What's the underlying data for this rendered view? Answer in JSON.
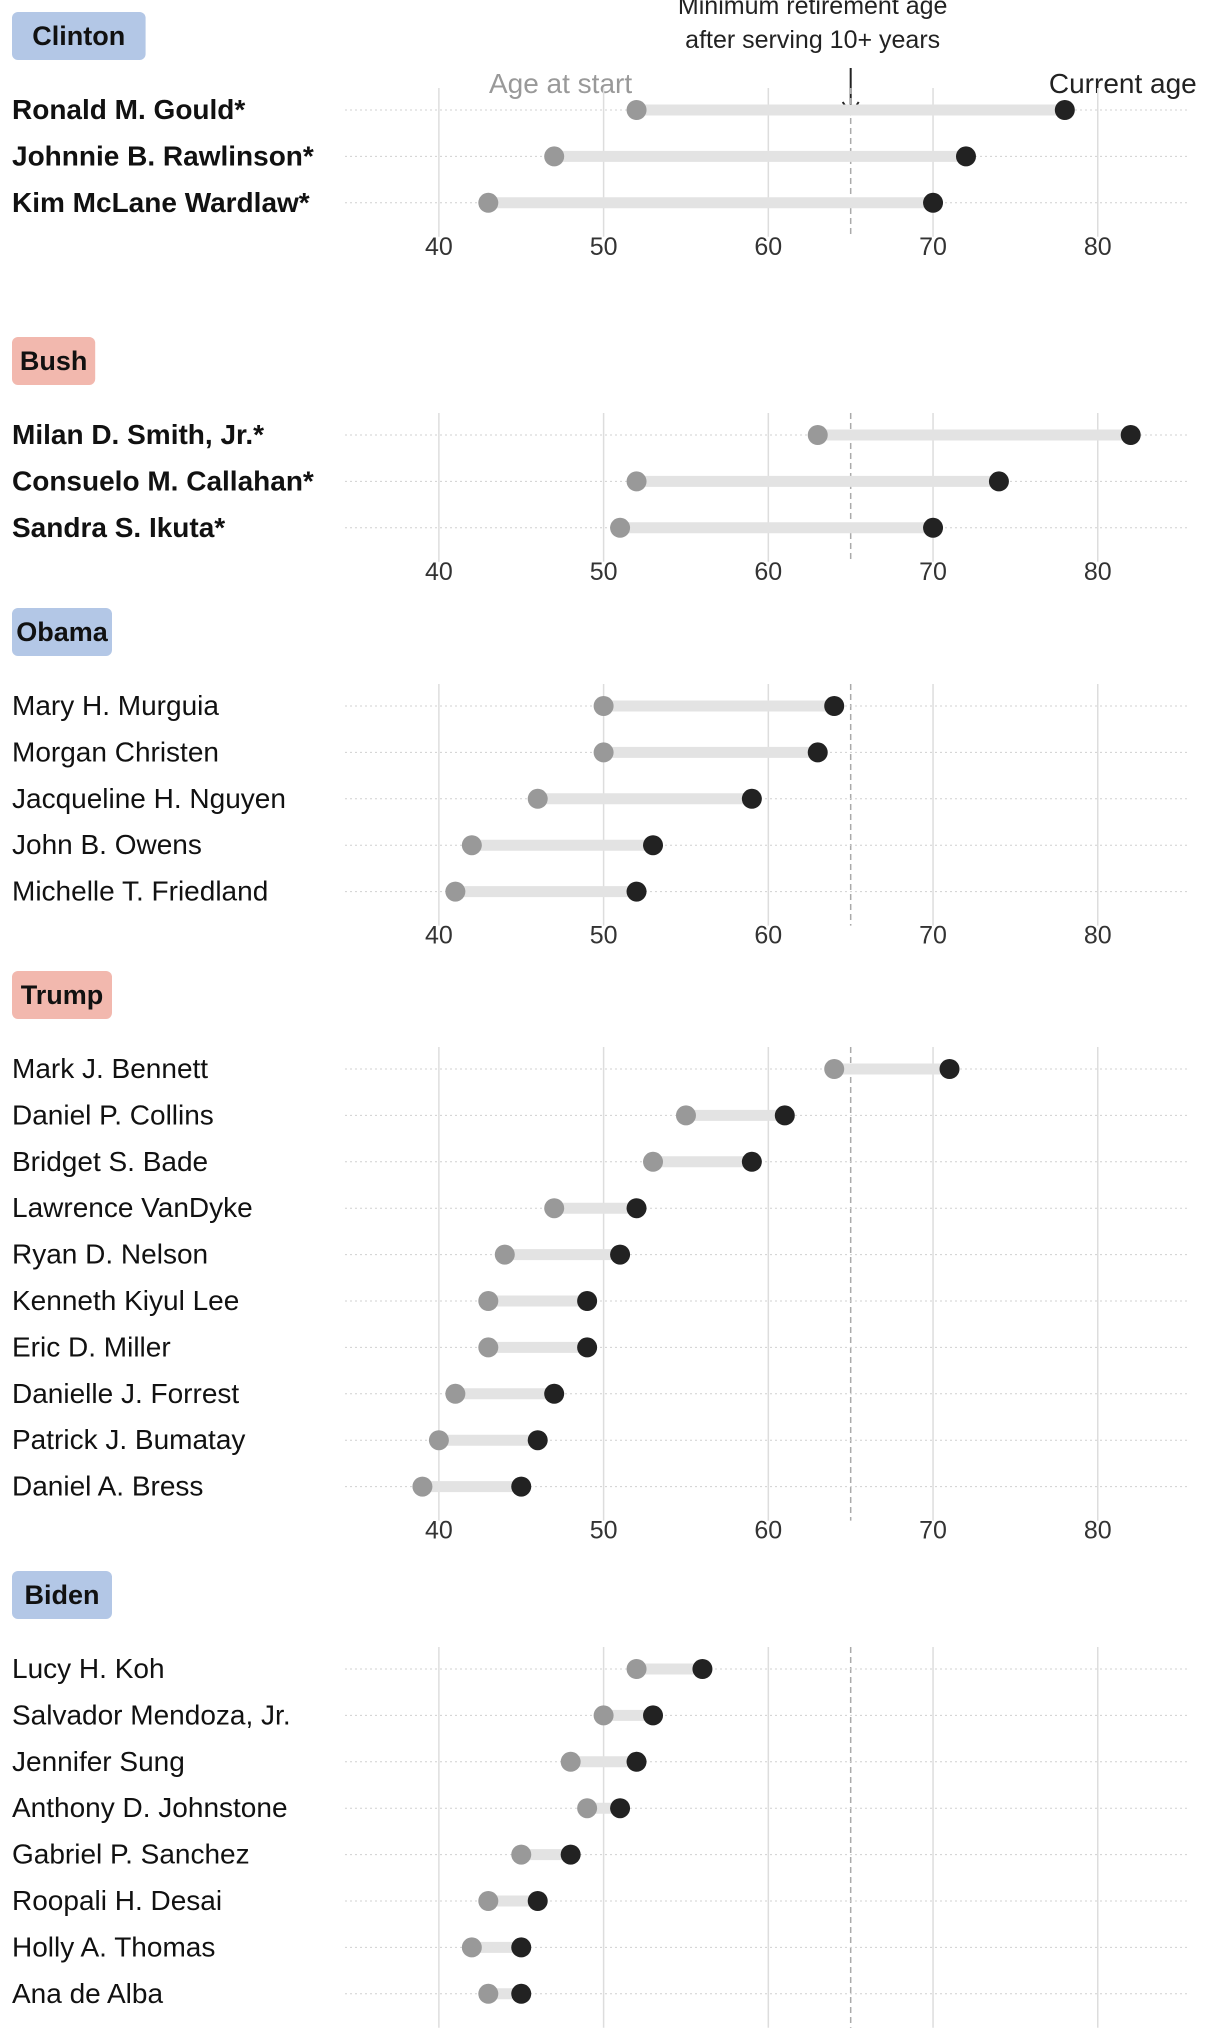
{
  "annotations": {
    "min_retirement_line1": "Minimum retirement age",
    "min_retirement_line2": "after serving 10+ years",
    "age_at_start_label": "Age at start",
    "current_age_label": "Current age"
  },
  "colors": {
    "democrat_badge": "#b3c7e6",
    "republican_badge": "#f2b8ae",
    "start_dot": "#999999",
    "current_dot": "#222222",
    "connector": "#e3e3e3",
    "gridline": "#dddddd",
    "retirement_line": "#aaaaaa"
  },
  "chart_data": {
    "type": "dot-range",
    "x_axis": {
      "ticks": [
        40,
        50,
        60,
        70,
        80
      ],
      "range": [
        34.3,
        85.6
      ]
    },
    "reference_line": {
      "value": 65
    },
    "bold_marker_note": "*",
    "groups": [
      {
        "name": "Clinton",
        "party": "democrat",
        "judges": [
          {
            "name": "Ronald M. Gould*",
            "start": 52,
            "current": 78,
            "bold": true
          },
          {
            "name": "Johnnie B. Rawlinson*",
            "start": 47,
            "current": 72,
            "bold": true
          },
          {
            "name": "Kim McLane Wardlaw*",
            "start": 43,
            "current": 70,
            "bold": true
          }
        ]
      },
      {
        "name": "Bush",
        "party": "republican",
        "judges": [
          {
            "name": "Milan D. Smith, Jr.*",
            "start": 63,
            "current": 82,
            "bold": true
          },
          {
            "name": "Consuelo M. Callahan*",
            "start": 52,
            "current": 74,
            "bold": true
          },
          {
            "name": "Sandra S. Ikuta*",
            "start": 51,
            "current": 70,
            "bold": true
          }
        ]
      },
      {
        "name": "Obama",
        "party": "democrat",
        "judges": [
          {
            "name": "Mary H. Murguia",
            "start": 50,
            "current": 64,
            "bold": false
          },
          {
            "name": "Morgan Christen",
            "start": 50,
            "current": 63,
            "bold": false
          },
          {
            "name": "Jacqueline H. Nguyen",
            "start": 46,
            "current": 59,
            "bold": false
          },
          {
            "name": "John B. Owens",
            "start": 42,
            "current": 53,
            "bold": false
          },
          {
            "name": "Michelle T. Friedland",
            "start": 41,
            "current": 52,
            "bold": false
          }
        ]
      },
      {
        "name": "Trump",
        "party": "republican",
        "judges": [
          {
            "name": "Mark J. Bennett",
            "start": 64,
            "current": 71,
            "bold": false
          },
          {
            "name": "Daniel P. Collins",
            "start": 55,
            "current": 61,
            "bold": false
          },
          {
            "name": "Bridget S. Bade",
            "start": 53,
            "current": 59,
            "bold": false
          },
          {
            "name": "Lawrence VanDyke",
            "start": 47,
            "current": 52,
            "bold": false
          },
          {
            "name": "Ryan D. Nelson",
            "start": 44,
            "current": 51,
            "bold": false
          },
          {
            "name": "Kenneth Kiyul Lee",
            "start": 43,
            "current": 49,
            "bold": false
          },
          {
            "name": "Eric D. Miller",
            "start": 43,
            "current": 49,
            "bold": false
          },
          {
            "name": "Danielle J. Forrest",
            "start": 41,
            "current": 47,
            "bold": false
          },
          {
            "name": "Patrick J. Bumatay",
            "start": 40,
            "current": 46,
            "bold": false
          },
          {
            "name": "Daniel A. Bress",
            "start": 39,
            "current": 45,
            "bold": false
          }
        ]
      },
      {
        "name": "Biden",
        "party": "democrat",
        "judges": [
          {
            "name": "Lucy H. Koh",
            "start": 52,
            "current": 56,
            "bold": false
          },
          {
            "name": "Salvador Mendoza, Jr.",
            "start": 50,
            "current": 53,
            "bold": false
          },
          {
            "name": "Jennifer Sung",
            "start": 48,
            "current": 52,
            "bold": false
          },
          {
            "name": "Anthony D. Johnstone",
            "start": 49,
            "current": 51,
            "bold": false
          },
          {
            "name": "Gabriel P. Sanchez",
            "start": 45,
            "current": 48,
            "bold": false
          },
          {
            "name": "Roopali H. Desai",
            "start": 43,
            "current": 46,
            "bold": false
          },
          {
            "name": "Holly A. Thomas",
            "start": 42,
            "current": 45,
            "bold": false
          },
          {
            "name": "Ana de Alba",
            "start": 43,
            "current": 45,
            "bold": false
          }
        ]
      }
    ]
  }
}
